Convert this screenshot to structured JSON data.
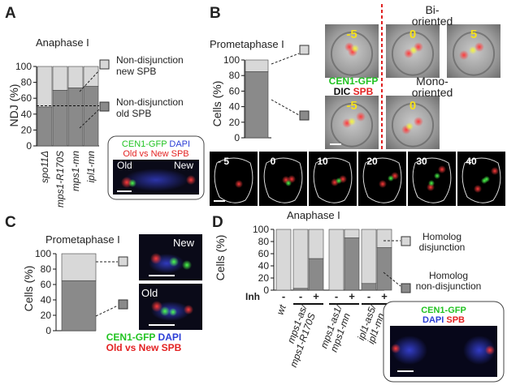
{
  "panels": {
    "A": {
      "letter": "A",
      "title": "Anaphase I",
      "ylabel": "NDJ (%)",
      "yticks": [
        "0",
        "20",
        "40",
        "60",
        "80",
        "100"
      ],
      "categories": [
        "spo11Δ",
        "mps1-R170S",
        "mps1-mn",
        "ipl1-mn"
      ],
      "legend_new": [
        "Non-disjunction",
        "new SPB"
      ],
      "legend_old": [
        "Non-disjunction",
        "old SPB"
      ],
      "inset": {
        "legend_line1": [
          {
            "text": "CEN1-GFP",
            "color": "#22c322"
          },
          {
            "text": " DAPI",
            "color": "#2c3fd6"
          }
        ],
        "legend_line2": [
          {
            "text": "Old vs New SPB",
            "color": "#e32222"
          }
        ],
        "label_old": "Old",
        "label_new": "New"
      }
    },
    "B": {
      "letter": "B",
      "title": "Prometaphase I",
      "ylabel": "Cells (%)",
      "yticks": [
        "0",
        "20",
        "40",
        "60",
        "80",
        "100"
      ],
      "bi_label": [
        "Bi-",
        "oriented"
      ],
      "mono_label": [
        "Mono-",
        "oriented"
      ],
      "legend_line1": [
        {
          "text": "CEN1-GFP",
          "color": "#22c322"
        }
      ],
      "legend_line2": [
        {
          "text": "DIC ",
          "color": "#111111"
        },
        {
          "text": "SPB",
          "color": "#e32222"
        }
      ],
      "bi_frames": [
        "-5",
        "0",
        "5"
      ],
      "mono_frames": [
        "-5",
        "0"
      ],
      "timelapse": [
        "- 5",
        "0",
        "10",
        "20",
        "30",
        "40"
      ]
    },
    "C": {
      "letter": "C",
      "title": "Prometaphase I",
      "ylabel": "Cells (%)",
      "yticks": [
        "0",
        "20",
        "40",
        "60",
        "80",
        "100"
      ],
      "label_new": "New",
      "label_old": "Old",
      "legend_line1": [
        {
          "text": "CEN1-GFP",
          "color": "#22c322"
        },
        {
          "text": " DAPI",
          "color": "#2c3fd6"
        }
      ],
      "legend_line2": [
        {
          "text": "Old vs New SPB",
          "color": "#e32222"
        }
      ]
    },
    "D": {
      "letter": "D",
      "title": "Anaphase I",
      "ylabel": "Cells (%)",
      "yticks": [
        "0",
        "20",
        "40",
        "60",
        "80",
        "100"
      ],
      "inh_label": "Inh",
      "inh_signs": [
        "-",
        "-",
        "+",
        "-",
        "+",
        "-",
        "+"
      ],
      "group_labels": [
        "wt",
        "mps1-as/ mps1-R170S",
        "mps1-as1/ mps1-mn",
        "ipl1-as5/ ipl1-mn"
      ],
      "legend_dis": [
        "Homolog",
        "disjunction"
      ],
      "legend_nondis": [
        "Homolog",
        "non-disjunction"
      ],
      "legend_line1": [
        {
          "text": "CEN1-GFP",
          "color": "#22c322"
        }
      ],
      "legend_line2": [
        {
          "text": "DAPI ",
          "color": "#2c3fd6"
        },
        {
          "text": "SPB",
          "color": "#e32222"
        }
      ]
    }
  },
  "colors": {
    "dark": "#8a8a8a",
    "light": "#d8d8d8",
    "frame_number": "#f5e11a"
  },
  "chart_data": [
    {
      "type": "bar",
      "panel": "A",
      "categories": [
        "spo11Δ",
        "mps1-R170S",
        "mps1-mn",
        "ipl1-mn"
      ],
      "series": [
        {
          "name": "Non-disjunction old SPB",
          "values": [
            49,
            70,
            73,
            75
          ]
        },
        {
          "name": "Non-disjunction new SPB",
          "values": [
            51,
            30,
            27,
            25
          ]
        }
      ],
      "stacked": true,
      "reference_line": 50,
      "ylim": [
        0,
        100
      ],
      "ylabel": "NDJ (%)"
    },
    {
      "type": "bar",
      "panel": "B",
      "categories": [
        ""
      ],
      "series": [
        {
          "name": "Mono-oriented",
          "values": [
            85
          ]
        },
        {
          "name": "Bi-oriented",
          "values": [
            15
          ]
        }
      ],
      "stacked": true,
      "ylim": [
        0,
        100
      ],
      "ylabel": "Cells (%)"
    },
    {
      "type": "bar",
      "panel": "C",
      "categories": [
        ""
      ],
      "series": [
        {
          "name": "Old",
          "values": [
            65
          ]
        },
        {
          "name": "New",
          "values": [
            35
          ]
        }
      ],
      "stacked": true,
      "ylim": [
        0,
        100
      ],
      "ylabel": "Cells (%)"
    },
    {
      "type": "bar",
      "panel": "D",
      "categories": [
        "wt -",
        "mps1-as/mps1-R170S -",
        "mps1-as/mps1-R170S +",
        "mps1-as1/mps1-mn -",
        "mps1-as1/mps1-mn +",
        "ipl1-as5/ipl1-mn -",
        "ipl1-as5/ipl1-mn +"
      ],
      "series": [
        {
          "name": "Homolog non-disjunction",
          "values": [
            0,
            3,
            52,
            0,
            86,
            11,
            70
          ]
        },
        {
          "name": "Homolog disjunction",
          "values": [
            100,
            97,
            48,
            100,
            14,
            89,
            30
          ]
        }
      ],
      "stacked": true,
      "ylim": [
        0,
        100
      ],
      "ylabel": "Cells (%)"
    }
  ]
}
